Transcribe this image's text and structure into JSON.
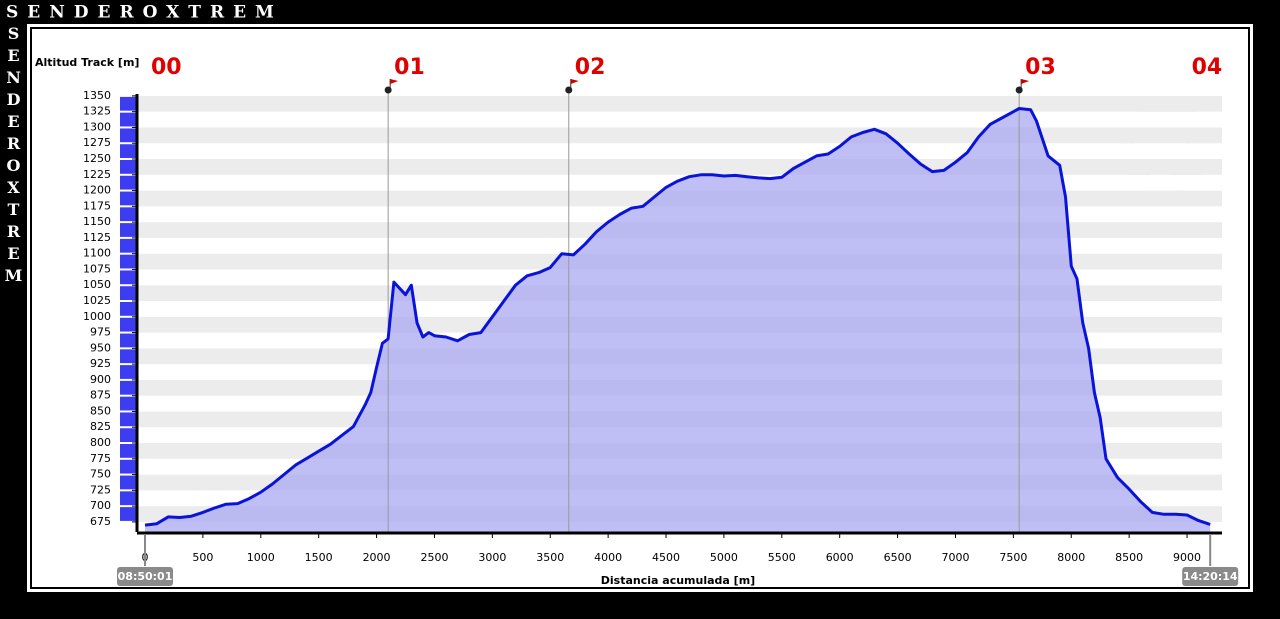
{
  "brand": "SENDEROXTREM",
  "chart_data": {
    "type": "area",
    "y_label": "Altitud Track [m]",
    "x_label": "Distancia acumulada [m]",
    "start_time": "08:50:01",
    "end_time": "14:20:14",
    "color": "#0a14d8",
    "fill_color": "#aaaaf2",
    "grid": true,
    "xlim": [
      -216,
      9302
    ],
    "ylim": [
      659,
      1353
    ],
    "xticks": [
      0,
      500,
      1000,
      1500,
      2000,
      2500,
      3000,
      3500,
      4000,
      4500,
      5000,
      5500,
      6000,
      6500,
      7000,
      7500,
      8000,
      8500,
      9000
    ],
    "yticks": [
      675,
      700,
      725,
      750,
      775,
      800,
      825,
      850,
      875,
      900,
      925,
      950,
      975,
      1000,
      1025,
      1050,
      1075,
      1100,
      1125,
      1150,
      1175,
      1200,
      1225,
      1250,
      1275,
      1300,
      1325,
      1350
    ],
    "waypoints": [
      {
        "label": "00",
        "x": 0,
        "flag": false
      },
      {
        "label": "01",
        "x": 2100,
        "flag": true
      },
      {
        "label": "02",
        "x": 3660,
        "flag": true
      },
      {
        "label": "03",
        "x": 7550,
        "flag": true
      },
      {
        "label": "04",
        "x": 9200,
        "flag": false
      }
    ],
    "x": [
      0,
      100,
      200,
      300,
      400,
      500,
      600,
      700,
      800,
      900,
      1000,
      1100,
      1200,
      1300,
      1400,
      1500,
      1600,
      1700,
      1800,
      1900,
      1950,
      2000,
      2050,
      2100,
      2150,
      2200,
      2250,
      2300,
      2350,
      2400,
      2450,
      2500,
      2600,
      2700,
      2800,
      2900,
      3000,
      3100,
      3200,
      3300,
      3400,
      3500,
      3600,
      3700,
      3800,
      3900,
      4000,
      4100,
      4200,
      4300,
      4400,
      4500,
      4600,
      4700,
      4800,
      4900,
      5000,
      5100,
      5200,
      5300,
      5400,
      5500,
      5600,
      5700,
      5800,
      5900,
      6000,
      6100,
      6200,
      6300,
      6400,
      6500,
      6600,
      6700,
      6800,
      6900,
      7000,
      7100,
      7200,
      7300,
      7400,
      7500,
      7550,
      7650,
      7700,
      7800,
      7900,
      7950,
      8000,
      8050,
      8100,
      8150,
      8200,
      8250,
      8300,
      8400,
      8500,
      8600,
      8700,
      8800,
      8900,
      9000,
      9100,
      9200
    ],
    "values": [
      670,
      672,
      683,
      682,
      684,
      690,
      697,
      703,
      704,
      712,
      722,
      735,
      750,
      765,
      776,
      787,
      798,
      812,
      826,
      860,
      880,
      920,
      958,
      965,
      1055,
      1045,
      1035,
      1050,
      990,
      968,
      975,
      970,
      968,
      962,
      972,
      975,
      1000,
      1025,
      1050,
      1065,
      1070,
      1078,
      1100,
      1098,
      1115,
      1135,
      1150,
      1162,
      1172,
      1175,
      1190,
      1205,
      1215,
      1222,
      1225,
      1225,
      1223,
      1224,
      1222,
      1220,
      1219,
      1221,
      1235,
      1245,
      1255,
      1258,
      1270,
      1285,
      1292,
      1297,
      1290,
      1275,
      1258,
      1242,
      1230,
      1232,
      1245,
      1260,
      1285,
      1305,
      1315,
      1325,
      1330,
      1328,
      1310,
      1255,
      1240,
      1190,
      1080,
      1060,
      990,
      950,
      880,
      840,
      775,
      745,
      727,
      707,
      690,
      687,
      687,
      686,
      677,
      671
    ]
  }
}
